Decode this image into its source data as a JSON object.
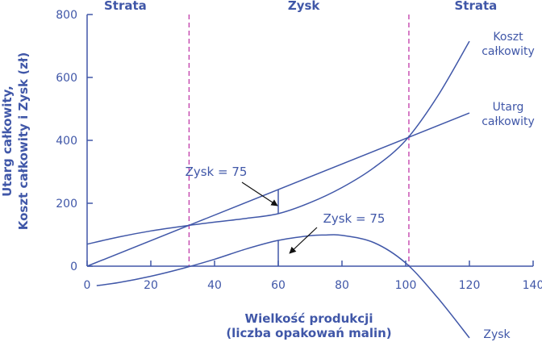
{
  "chart_data": {
    "type": "line",
    "title": "",
    "xlabel": [
      "Wielkość produkcji",
      "(liczba opakowań malin)"
    ],
    "ylabel": [
      "Utarg całkowity,",
      "Koszt całkowity i Zysk (zł)"
    ],
    "xlim": [
      0,
      140
    ],
    "ylim": [
      0,
      800
    ],
    "x_ticks": [
      "0",
      "20",
      "40",
      "60",
      "80",
      "100",
      "120",
      "140"
    ],
    "y_ticks": [
      "0",
      "200",
      "400",
      "600",
      "800"
    ],
    "grid": false,
    "region_labels": [
      {
        "text": "Strata",
        "x_center": 12
      },
      {
        "text": "Zysk",
        "x_center": 68
      },
      {
        "text": "Strata",
        "x_center": 122
      }
    ],
    "breakeven_x": [
      32,
      101
    ],
    "series": [
      {
        "name": "Utarg całkowity",
        "label_lines": [
          "Utarg",
          "całkowity"
        ],
        "x": [
          0,
          120
        ],
        "y": [
          0,
          487
        ]
      },
      {
        "name": "Koszt całkowity",
        "label_lines": [
          "Koszt",
          "całkowity"
        ],
        "x": [
          0,
          10,
          20,
          30,
          40,
          50,
          60,
          70,
          80,
          90,
          100,
          110,
          120
        ],
        "y": [
          70,
          93,
          112,
          127,
          140,
          152,
          167,
          202,
          250,
          313,
          400,
          540,
          715
        ]
      },
      {
        "name": "Zysk",
        "label_lines": [
          "Zysk"
        ],
        "x": [
          3,
          10,
          20,
          30,
          40,
          50,
          60,
          70,
          75,
          80,
          90,
          100,
          110,
          120
        ],
        "y": [
          -62,
          -52,
          -32,
          -7,
          22,
          55,
          82,
          97,
          99,
          98,
          75,
          10,
          -100,
          -228
        ]
      }
    ],
    "annotations": [
      {
        "text": "Zysk = 75",
        "x": 60
      },
      {
        "text": "Zysk = 75",
        "x": 60
      }
    ]
  }
}
